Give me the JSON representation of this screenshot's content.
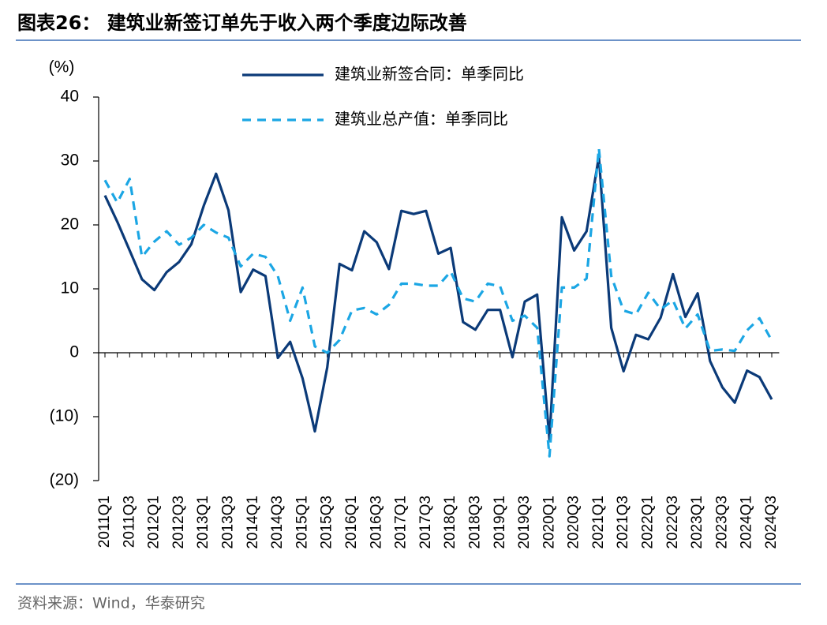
{
  "chart_data": {
    "type": "line",
    "title": "图表26：  建筑业新签订单先于收入两个季度边际改善",
    "y_unit": "(%)",
    "source": "资料来源：Wind，华泰研究",
    "categories": [
      "2011Q1",
      null,
      "2011Q3",
      null,
      "2012Q1",
      null,
      "2012Q3",
      null,
      "2013Q1",
      null,
      "2013Q3",
      null,
      "2014Q1",
      null,
      "2014Q3",
      null,
      "2015Q1",
      null,
      "2015Q3",
      null,
      "2016Q1",
      null,
      "2016Q3",
      null,
      "2017Q1",
      null,
      "2017Q3",
      null,
      "2018Q1",
      null,
      "2018Q3",
      null,
      "2019Q1",
      null,
      "2019Q3",
      null,
      "2020Q1",
      null,
      "2020Q3",
      null,
      "2021Q1",
      null,
      "2021Q3",
      null,
      "2022Q1",
      null,
      "2022Q3",
      null,
      "2023Q1",
      null,
      "2023Q3",
      null,
      "2024Q1",
      null,
      "2024Q3"
    ],
    "series": [
      {
        "name": "建筑业新签合同：单季同比",
        "color": "#0b3a78",
        "linestyle": "solid",
        "values": [
          24.6,
          20.5,
          16,
          11.5,
          9.8,
          12.6,
          14.2,
          17,
          23,
          28,
          22.3,
          9.5,
          13,
          12,
          -0.8,
          1.7,
          -4,
          -12.3,
          -2.3,
          13.9,
          12.9,
          19,
          17.3,
          13.1,
          22.2,
          21.7,
          22.2,
          15.5,
          16.4,
          4.8,
          3.6,
          6.7,
          6.7,
          -0.7,
          8,
          9.1,
          -13.6,
          21.2,
          16,
          19,
          30.7,
          3.9,
          -2.9,
          2.8,
          2.1,
          5.5,
          12.3,
          5.6,
          9.3,
          -1.3,
          -5.4,
          -7.8,
          -2.8,
          -3.8,
          -7.3
        ]
      },
      {
        "name": "建筑业总产值：单季同比",
        "color": "#1ba6e4",
        "linestyle": "dashed",
        "values": [
          27,
          23.5,
          27.2,
          15,
          17.4,
          19,
          16.9,
          18,
          20,
          18.8,
          18,
          13.5,
          15.5,
          15,
          12,
          5,
          10.2,
          1,
          0,
          2,
          6.6,
          7,
          6,
          7.5,
          10.8,
          10.8,
          10.5,
          10.5,
          12.7,
          8.5,
          8,
          10.8,
          10.4,
          5,
          5.8,
          3.9,
          -16.2,
          10.2,
          10.2,
          11.6,
          32,
          12,
          6.6,
          6,
          9.4,
          6.8,
          8.2,
          3.8,
          6,
          0.3,
          0.5,
          0.3,
          3.5,
          5.4,
          1.9
        ]
      }
    ],
    "ylim": [
      -20,
      40
    ],
    "yticks": [
      {
        "value": -20,
        "label": "(20)"
      },
      {
        "value": -10,
        "label": "(10)"
      },
      0,
      10,
      20,
      30,
      40
    ]
  }
}
